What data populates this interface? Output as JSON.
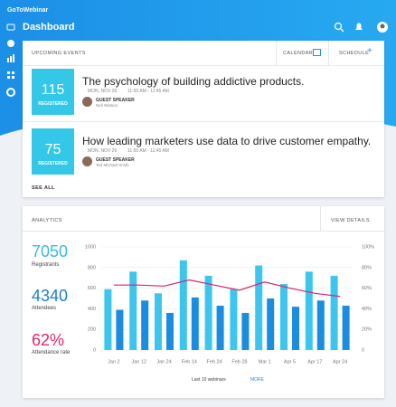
{
  "header": {
    "logo": "GoToWebinar",
    "title": "Dashboard"
  },
  "upcoming": {
    "title": "UPCOMING EVENTS",
    "calendar": "CALENDAR",
    "schedule": "SCHEDULE",
    "see_all": "SEE ALL",
    "events": [
      {
        "count": 115,
        "count_label": "REGISTERED",
        "title": "The psychology of building addictive products.",
        "date": "MON, NOV 26",
        "time": "11:00 AM - 11:45 AM",
        "role": "GUEST SPEAKER",
        "speaker": "Nell Watson"
      },
      {
        "count": 75,
        "count_label": "REGISTERED",
        "title": "How leading marketers use data to drive customer empathy.",
        "date": "MON, NOV 26",
        "time": "11:00 AM - 11:45 AM",
        "role": "GUEST SPEAKER",
        "speaker": "Ted Michael Smith"
      }
    ]
  },
  "analytics": {
    "title": "ANALYTICS",
    "view_details": "VIEW DETAILS",
    "stats": [
      {
        "value": 7050,
        "label": "Registrants"
      },
      {
        "value": 4340,
        "label": "Attendees"
      },
      {
        "value": "62%",
        "label": "Attendance rate"
      }
    ],
    "footer": "Last 10 webinars",
    "more": "MORE"
  },
  "chart_data": {
    "type": "bar",
    "categories": [
      "Jan 2",
      "Jan 12",
      "Jan 24",
      "Feb 14",
      "Feb 24",
      "Feb 28",
      "Mar 1",
      "Apr 5",
      "Apr 17",
      "Apr 24"
    ],
    "series": [
      {
        "color": "#3cc6ef",
        "values": [
          590,
          760,
          550,
          870,
          720,
          590,
          820,
          640,
          760,
          720
        ]
      },
      {
        "color": "#1a8de0",
        "values": [
          390,
          480,
          360,
          510,
          430,
          360,
          500,
          420,
          480,
          430
        ]
      },
      {
        "type": "line",
        "axis": "y2",
        "color": "#e0206e",
        "values": [
          63,
          63,
          62,
          68,
          63,
          58,
          66,
          60,
          55,
          52
        ]
      }
    ],
    "ylim": [
      0,
      1000
    ],
    "yticks": [
      0,
      200,
      400,
      600,
      800,
      1000
    ],
    "y2lim": [
      0,
      100
    ],
    "y2ticks": [
      0,
      {
        "value": 20,
        "label": "20%"
      },
      {
        "value": 40,
        "label": "40%"
      },
      {
        "value": 60,
        "label": "60%"
      },
      {
        "value": 80,
        "label": "80%"
      },
      {
        "value": 100,
        "label": "100%"
      }
    ],
    "grid": true
  }
}
